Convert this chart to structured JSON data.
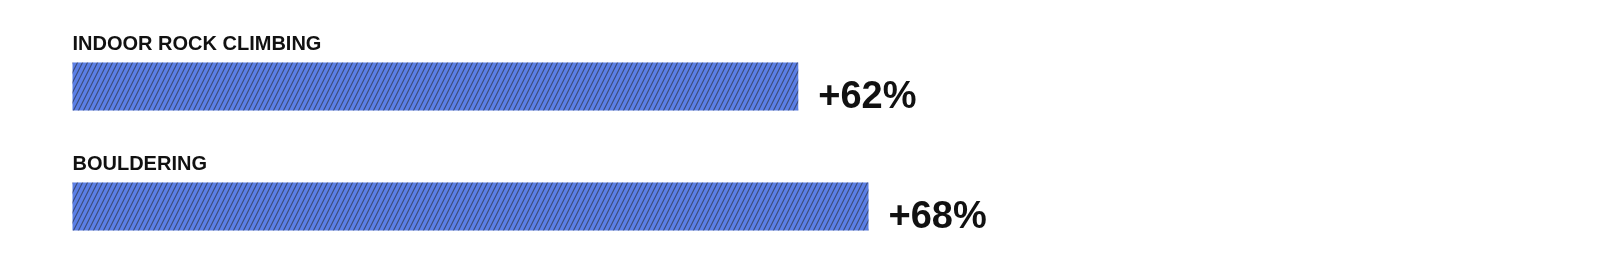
{
  "chart_data": {
    "type": "bar",
    "orientation": "horizontal",
    "categories": [
      "INDOOR ROCK CLIMBING",
      "BOULDERING"
    ],
    "values": [
      62,
      68
    ],
    "value_labels": [
      "+62%",
      "+68%"
    ],
    "color": "#5b7fe6"
  }
}
